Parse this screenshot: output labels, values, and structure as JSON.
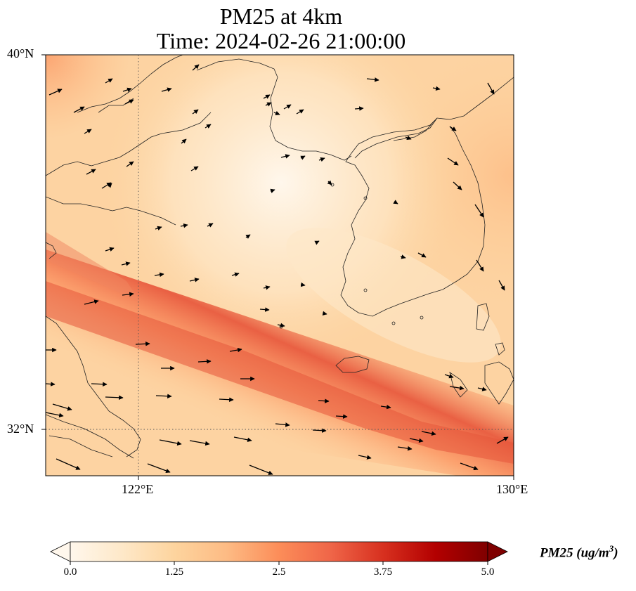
{
  "title": {
    "line1": "PM25 at 4km",
    "line2": "Time: 2024-02-26 21:00:00"
  },
  "axes": {
    "lat_labels": [
      "40°N",
      "32°N"
    ],
    "lon_labels": [
      "122°E",
      "130°E"
    ],
    "gridlines": {
      "lat": 32,
      "lon": 122,
      "style": "dotted"
    }
  },
  "colorbar": {
    "label": "PM25 (ug/m",
    "label_sup": "3",
    "label_close": ")",
    "ticks": [
      "0.0",
      "1.25",
      "2.5",
      "3.75",
      "5.0"
    ],
    "min": 0.0,
    "max": 5.0,
    "extend": "both",
    "colormap": "OrRd",
    "colors": [
      "#fff7ec",
      "#fee8c8",
      "#fdd49e",
      "#fdbb84",
      "#fc8d59",
      "#ef6548",
      "#d7301f",
      "#b30000",
      "#7f0000"
    ]
  },
  "map": {
    "region": "Yellow Sea / Korean Peninsula",
    "lon_range": [
      120,
      130
    ],
    "lat_range": [
      31,
      40
    ],
    "plume": {
      "description": "elevated PM25 band oriented NW-SE across southern Yellow Sea",
      "peak_value": 2.8
    },
    "background_value": 0.8,
    "wind_vectors": "arrows predominantly westerly, NW winds over Korea"
  }
}
